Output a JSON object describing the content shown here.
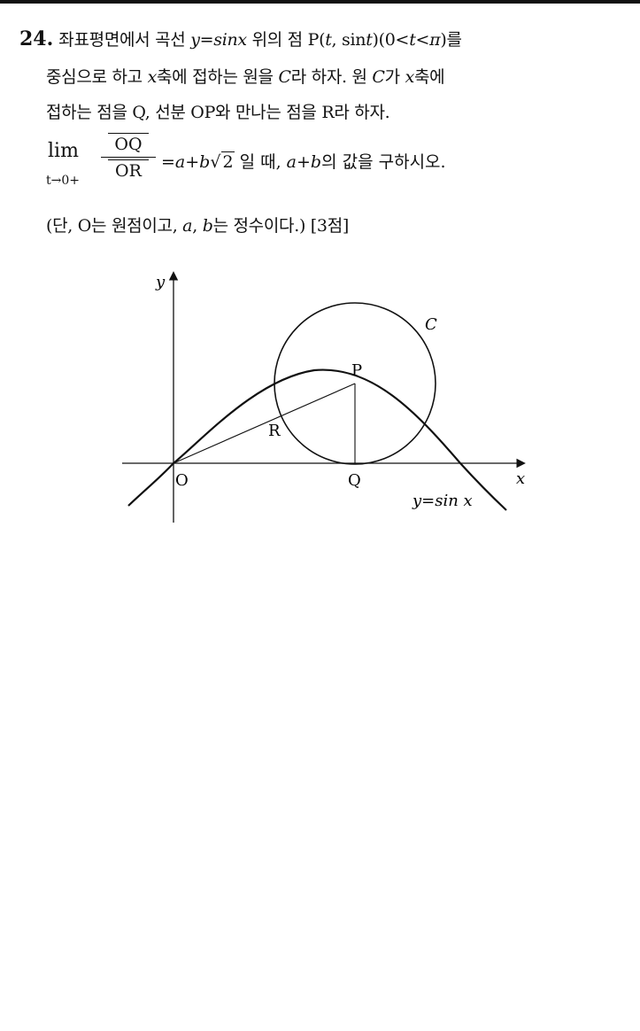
{
  "problem": {
    "number": "24.",
    "line1_a": "좌표평면에서 곡선 ",
    "line1_eq": "y=sinx",
    "line1_b": " 위의 점 P(",
    "line1_t": "t",
    "line1_c": ", sin",
    "line1_t2": "t",
    "line1_d": ")(0<",
    "line1_t3": "t",
    "line1_e": "<",
    "line1_pi": "π",
    "line1_f": ")를",
    "line2_a": "중심으로 하고 ",
    "line2_x": "x",
    "line2_b": "축에 접하는 원을 ",
    "line2_C": "C",
    "line2_c": "라 하자. 원 ",
    "line2_C2": "C",
    "line2_d": "가 ",
    "line2_x2": "x",
    "line2_e": "축에",
    "line3": "접하는 점을 Q, 선분 OP와 만나는 점을 R라 하자.",
    "lim_word": "lim",
    "lim_sub": "t→0+",
    "frac_num": "OQ",
    "frac_den": "OR",
    "eq_a": "=",
    "eq_av": "a",
    "eq_plus": "+",
    "eq_bv": "b",
    "eq_sqrt_sym": "√",
    "eq_sqrt_val": "2",
    "eq_text": " 일 때, ",
    "eq_av2": "a",
    "eq_plus2": "+",
    "eq_bv2": "b",
    "eq_tail": "의 값을 구하시오.",
    "cond_a": "(단, O는 원점이고, ",
    "cond_av": "a",
    "cond_comma": ", ",
    "cond_bv": "b",
    "cond_b": "는 정수이다.) [3점]"
  },
  "figure": {
    "label_y": "y",
    "label_x": "x",
    "label_O": "O",
    "label_P": "P",
    "label_Q": "Q",
    "label_R": "R",
    "label_C": "C",
    "curve_label": "y=sin x"
  }
}
